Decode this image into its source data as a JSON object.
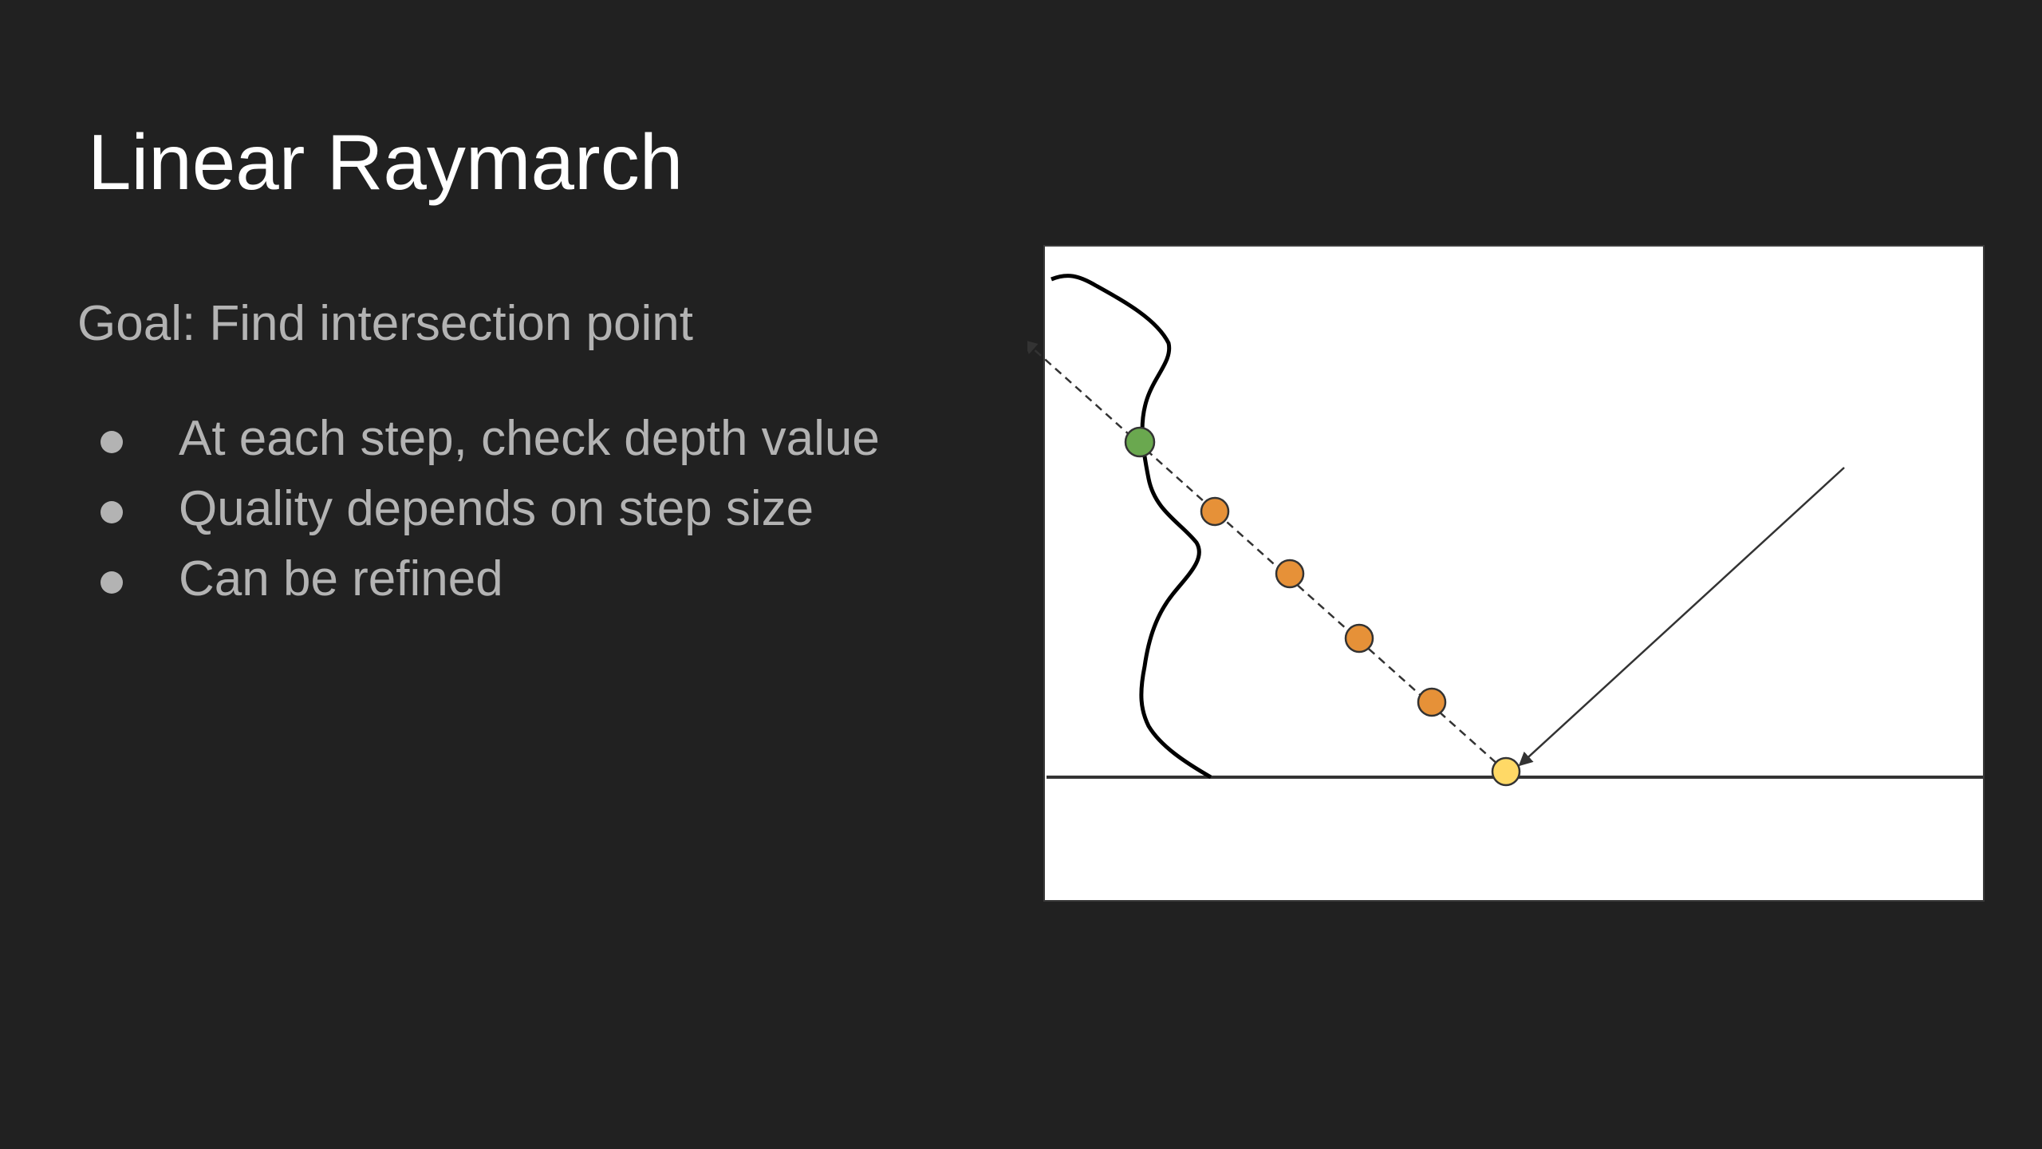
{
  "slide": {
    "title": "Linear Raymarch",
    "goal": "Goal: Find intersection point",
    "bullets": [
      "At each step, check depth value",
      "Quality depends on step size",
      "Can be refined"
    ]
  },
  "diagram": {
    "colors": {
      "background": "#ffffff",
      "surface_line": "#333333",
      "depth_curve": "#000000",
      "ray": "#333333",
      "intersection_point": "#6aa84f",
      "step_point": "#e69138",
      "start_point": "#ffd966"
    },
    "step_points": [
      "step-1",
      "step-2",
      "step-3",
      "step-4"
    ]
  }
}
